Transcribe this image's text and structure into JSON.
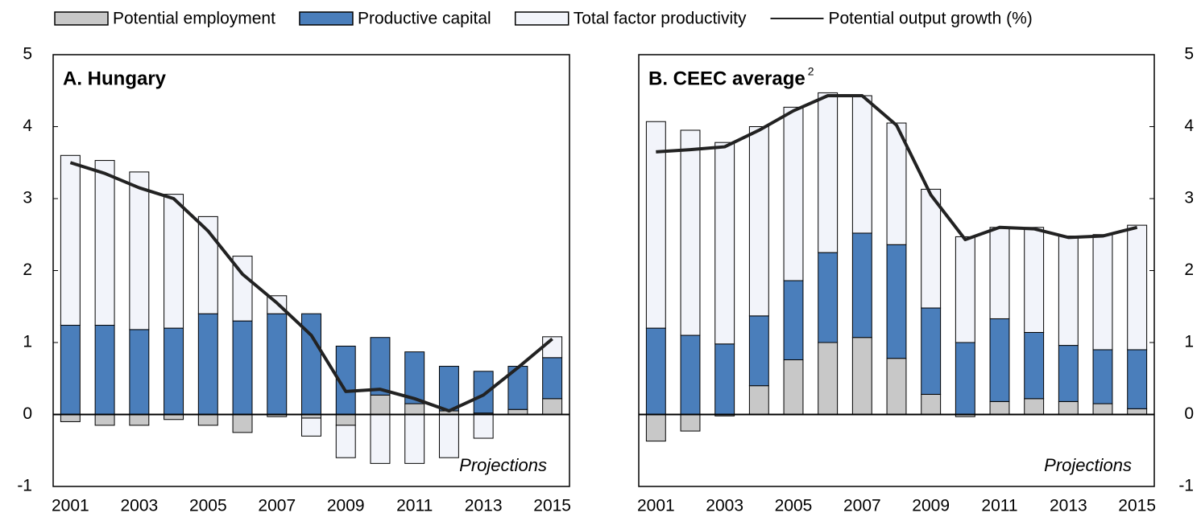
{
  "chart_data": [
    {
      "type": "bar",
      "title": "A. Hungary",
      "annotation": "Projections",
      "categories": [
        "2001",
        null,
        "2003",
        null,
        "2005",
        null,
        "2007",
        null,
        "2009",
        null,
        "2011",
        null,
        "2013",
        null,
        "2015"
      ],
      "ylim": [
        -1,
        5
      ],
      "yticks": [
        -1,
        0,
        1,
        2,
        3,
        4,
        5
      ],
      "series": [
        {
          "name": "Potential employment",
          "color": "#c8c8c8",
          "type": "bar",
          "values": [
            -0.1,
            -0.15,
            -0.15,
            -0.07,
            -0.15,
            -0.25,
            -0.03,
            -0.05,
            -0.15,
            0.27,
            0.15,
            0.05,
            0.02,
            0.07,
            0.22
          ]
        },
        {
          "name": "Productive capital",
          "color": "#4a7ebb",
          "type": "bar",
          "values": [
            1.24,
            1.24,
            1.18,
            1.2,
            1.4,
            1.3,
            1.4,
            1.4,
            0.95,
            0.8,
            0.72,
            0.62,
            0.58,
            0.6,
            0.57
          ]
        },
        {
          "name": "Total factor productivity",
          "color": "#f2f4fa",
          "type": "bar",
          "values": [
            2.36,
            2.29,
            2.19,
            1.86,
            1.35,
            0.9,
            0.25,
            -0.25,
            -0.45,
            -0.68,
            -0.68,
            -0.6,
            -0.33,
            0,
            0.29
          ]
        },
        {
          "name": "Potential output growth (%)",
          "color": "#222222",
          "type": "line",
          "values": [
            3.5,
            3.35,
            3.15,
            3.0,
            2.55,
            1.95,
            1.55,
            1.1,
            0.32,
            0.35,
            0.22,
            0.05,
            0.27,
            0.65,
            1.05
          ]
        }
      ]
    },
    {
      "type": "bar",
      "title": "B. CEEC average",
      "title_note": "2",
      "annotation": "Projections",
      "categories": [
        "2001",
        null,
        "2003",
        null,
        "2005",
        null,
        "2007",
        null,
        "2009",
        null,
        "2011",
        null,
        "2013",
        null,
        "2015"
      ],
      "ylim": [
        -1,
        5
      ],
      "yticks": [
        -1,
        0,
        1,
        2,
        3,
        4,
        5
      ],
      "series": [
        {
          "color": "#c8c8c8",
          "type": "bar",
          "values": [
            -0.37,
            -0.23,
            -0.02,
            0.4,
            0.76,
            1.0,
            1.07,
            0.78,
            0.28,
            -0.03,
            0.18,
            0.22,
            0.18,
            0.15,
            0.08
          ]
        },
        {
          "color": "#4a7ebb",
          "type": "bar",
          "values": [
            1.2,
            1.1,
            0.98,
            0.97,
            1.1,
            1.25,
            1.45,
            1.58,
            1.2,
            1.0,
            1.15,
            0.92,
            0.78,
            0.75,
            0.82
          ]
        },
        {
          "color": "#f2f4fa",
          "type": "bar",
          "values": [
            2.87,
            2.85,
            2.8,
            2.63,
            2.41,
            2.22,
            1.91,
            1.69,
            1.65,
            1.47,
            1.27,
            1.46,
            1.52,
            1.6,
            1.73
          ]
        },
        {
          "color": "#222222",
          "type": "line",
          "values": [
            3.65,
            3.68,
            3.72,
            3.95,
            4.22,
            4.43,
            4.43,
            4.02,
            3.05,
            2.43,
            2.6,
            2.58,
            2.46,
            2.48,
            2.6
          ]
        }
      ]
    }
  ]
}
